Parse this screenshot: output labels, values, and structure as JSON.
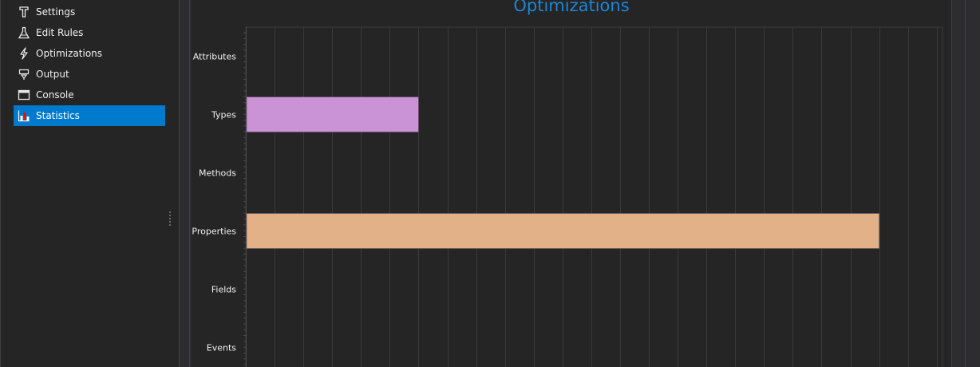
{
  "sidebar": {
    "items": [
      {
        "label": "Settings",
        "icon": "settings-icon",
        "selected": false
      },
      {
        "label": "Edit Rules",
        "icon": "flask-icon",
        "selected": false
      },
      {
        "label": "Optimizations",
        "icon": "lightning-icon",
        "selected": false
      },
      {
        "label": "Output",
        "icon": "output-icon",
        "selected": false
      },
      {
        "label": "Console",
        "icon": "console-icon",
        "selected": false
      },
      {
        "label": "Statistics",
        "icon": "bar-chart-icon",
        "selected": true
      }
    ]
  },
  "colors": {
    "accent": "#007acc",
    "title": "#1c86d6",
    "types_bar": "#c993d6",
    "properties_bar": "#e2b187"
  },
  "chart_data": {
    "type": "bar",
    "orientation": "horizontal",
    "title": "Optimizations",
    "categories": [
      "Attributes",
      "Types",
      "Methods",
      "Properties",
      "Fields",
      "Events"
    ],
    "values": [
      0,
      6,
      0,
      22,
      0,
      0
    ],
    "xlim": [
      0,
      24.2
    ],
    "grid": true,
    "bar_colors": [
      "#c993d6",
      "#c993d6",
      "#c993d6",
      "#e2b187",
      "#c993d6",
      "#c993d6"
    ]
  }
}
